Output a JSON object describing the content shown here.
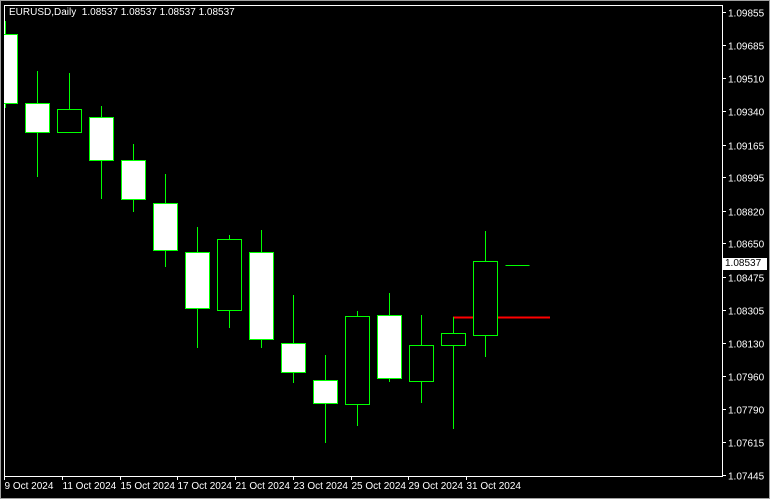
{
  "header": {
    "symbol_timeframe": "EURUSD,Daily",
    "ohlc_readout": "1.08537 1.08537 1.08537 1.08537"
  },
  "colors": {
    "background": "#000000",
    "candle_outline": "#00FF00",
    "bear_fill": "#FFFFFF",
    "bull_fill": "#000000",
    "level_line": "#FF0000",
    "axis": "#FFFFFF"
  },
  "price_axis": {
    "ticks": [
      "1.09855",
      "1.09685",
      "1.09510",
      "1.09340",
      "1.09165",
      "1.08995",
      "1.08820",
      "1.08650",
      "1.08475",
      "1.08305",
      "1.08130",
      "1.07960",
      "1.07790",
      "1.07615",
      "1.07445"
    ],
    "current_price": "1.08537"
  },
  "time_axis": {
    "labels": [
      "9 Oct 2024",
      "11 Oct 2024",
      "15 Oct 2024",
      "17 Oct 2024",
      "21 Oct 2024",
      "23 Oct 2024",
      "25 Oct 2024",
      "29 Oct 2024",
      "31 Oct 2024"
    ]
  },
  "chart_data": {
    "type": "candlestick",
    "symbol": "EURUSD",
    "timeframe": "Daily",
    "ylim": [
      1.07445,
      1.09855
    ],
    "candles": [
      {
        "date": "9 Oct 2024",
        "o": 1.09741,
        "h": 1.09808,
        "l": 1.09355,
        "c": 1.09381
      },
      {
        "date": "10 Oct 2024",
        "o": 1.09381,
        "h": 1.09548,
        "l": 1.08996,
        "c": 1.0923
      },
      {
        "date": "11 Oct 2024",
        "o": 1.0923,
        "h": 1.09538,
        "l": 1.0923,
        "c": 1.0935
      },
      {
        "date": "14 Oct 2024",
        "o": 1.09309,
        "h": 1.09366,
        "l": 1.08882,
        "c": 1.09085
      },
      {
        "date": "15 Oct 2024",
        "o": 1.09085,
        "h": 1.09168,
        "l": 1.08814,
        "c": 1.08882
      },
      {
        "date": "16 Oct 2024",
        "o": 1.08861,
        "h": 1.09012,
        "l": 1.08528,
        "c": 1.08616
      },
      {
        "date": "17 Oct 2024",
        "o": 1.08606,
        "h": 1.08736,
        "l": 1.08106,
        "c": 1.08314
      },
      {
        "date": "18 Oct 2024",
        "o": 1.08304,
        "h": 1.08694,
        "l": 1.0821,
        "c": 1.08673
      },
      {
        "date": "21 Oct 2024",
        "o": 1.08606,
        "h": 1.0872,
        "l": 1.08106,
        "c": 1.08153
      },
      {
        "date": "22 Oct 2024",
        "o": 1.08132,
        "h": 1.08382,
        "l": 1.07924,
        "c": 1.07981
      },
      {
        "date": "23 Oct 2024",
        "o": 1.0794,
        "h": 1.0807,
        "l": 1.07612,
        "c": 1.0782
      },
      {
        "date": "24 Oct 2024",
        "o": 1.07815,
        "h": 1.08299,
        "l": 1.077,
        "c": 1.08273
      },
      {
        "date": "25 Oct 2024",
        "o": 1.08278,
        "h": 1.08392,
        "l": 1.07929,
        "c": 1.0795
      },
      {
        "date": "28 Oct 2024",
        "o": 1.07934,
        "h": 1.08278,
        "l": 1.0782,
        "c": 1.08122
      },
      {
        "date": "29 Oct 2024",
        "o": 1.08122,
        "h": 1.08267,
        "l": 1.07685,
        "c": 1.08184
      },
      {
        "date": "30 Oct 2024",
        "o": 1.08174,
        "h": 1.08715,
        "l": 1.08059,
        "c": 1.08559
      },
      {
        "date": "31 Oct 2024",
        "o": 1.08537,
        "h": 1.08537,
        "l": 1.08537,
        "c": 1.08537
      }
    ],
    "horizontal_level": {
      "price": 1.08267,
      "from_date": "29 Oct 2024"
    }
  }
}
